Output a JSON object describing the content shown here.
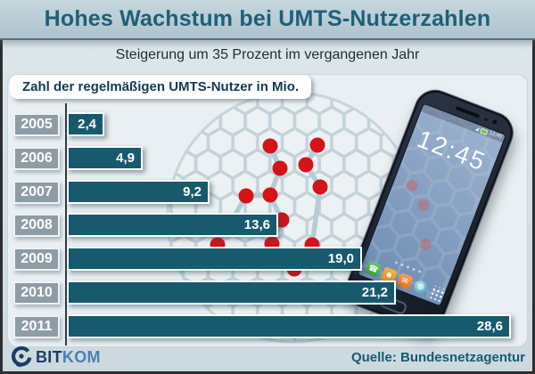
{
  "header": {
    "title": "Hohes Wachstum bei UMTS-Nutzerzahlen",
    "subtitle": "Steigerung um 35 Prozent im vergangenen Jahr"
  },
  "chart_data": {
    "type": "bar",
    "orientation": "horizontal",
    "title": "Zahl der regelmäßigen UMTS-Nutzer in Mio.",
    "categories": [
      "2005",
      "2006",
      "2007",
      "2008",
      "2009",
      "2010",
      "2011"
    ],
    "values": [
      2.4,
      4.9,
      9.2,
      13.6,
      19.0,
      21.2,
      28.6
    ],
    "value_labels": [
      "2,4",
      "4,9",
      "9,2",
      "13,6",
      "19,0",
      "21,2",
      "28,6"
    ],
    "xlim": [
      0,
      28.6
    ],
    "grid": false,
    "legend": "none",
    "bar_color": "#175a6e",
    "category_box_color": "#8e9ca6"
  },
  "phone": {
    "clock": "12:45",
    "status_time": "12:45",
    "dock_icons": [
      "phone",
      "contacts",
      "mail",
      "browser",
      "app-drawer"
    ]
  },
  "footer": {
    "logo_primary": "BIT",
    "logo_secondary": "KOM",
    "source": "Quelle: Bundesnetzagentur"
  },
  "colors": {
    "title_text": "#1d6078",
    "band_bg": "#b7cbd4",
    "bar_teal": "#175a6e",
    "red_dot": "#d31419",
    "source_text": "#175a73"
  }
}
